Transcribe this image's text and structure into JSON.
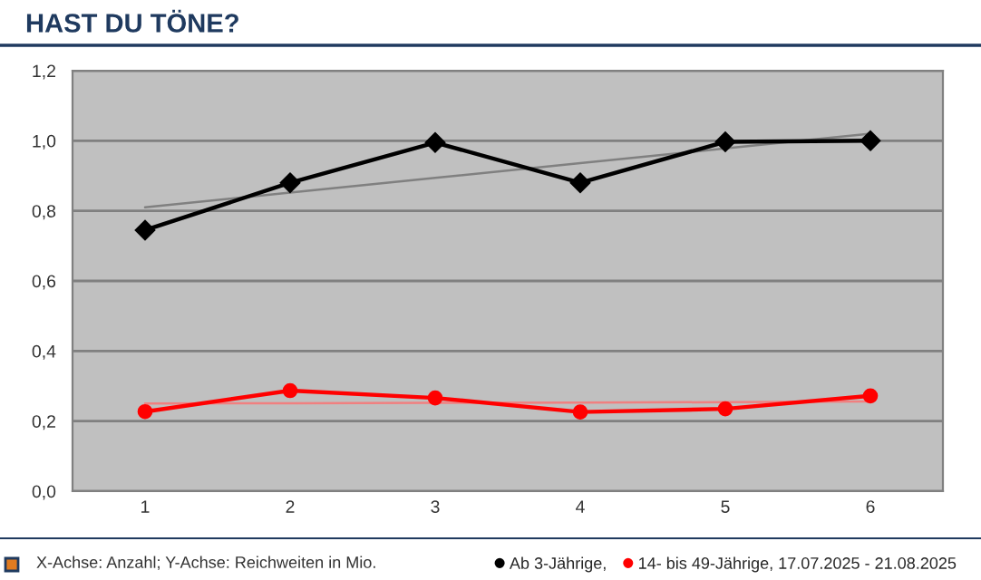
{
  "chart_data": {
    "type": "line",
    "title": "HAST DU TÖNE?",
    "x": [
      1,
      2,
      3,
      4,
      5,
      6
    ],
    "xlim": [
      0.5,
      6.5
    ],
    "xticks": [
      1,
      2,
      3,
      4,
      5,
      6
    ],
    "ylim": [
      0,
      1.2
    ],
    "yticks": [
      {
        "value": 0,
        "label": "0,0"
      },
      {
        "value": 0.2,
        "label": "0,2"
      },
      {
        "value": 0.4,
        "label": "0,4"
      },
      {
        "value": 0.6,
        "label": "0,6"
      },
      {
        "value": 0.8,
        "label": "0,8"
      },
      {
        "value": 1.0,
        "label": "1,0"
      },
      {
        "value": 1.2,
        "label": "1,2"
      }
    ],
    "grid": "y",
    "legend": "bottom right",
    "series": [
      {
        "name": "Ab 3-Jährige,",
        "color": "#000000",
        "marker": "diamond",
        "values": [
          0.745,
          0.88,
          0.995,
          0.88,
          0.997,
          1.0
        ]
      },
      {
        "name": "14- bis 49-Jährige, 17.07.2025 - 21.08.2025",
        "color": "#ff0000",
        "marker": "circle",
        "values": [
          0.227,
          0.287,
          0.266,
          0.226,
          0.235,
          0.272
        ]
      },
      {
        "type": "line",
        "color": "#808080",
        "marker": "none",
        "values": [
          0.81,
          0.852,
          0.894,
          0.936,
          0.978,
          1.02
        ]
      },
      {
        "type": "line",
        "color": "#f08080",
        "marker": "none",
        "values": [
          0.25,
          0.251,
          0.252,
          0.253,
          0.254,
          0.256
        ]
      }
    ],
    "annotations": [
      "X-Achse: Anzahl; Y-Achse: Reichweiten in Mio."
    ]
  }
}
